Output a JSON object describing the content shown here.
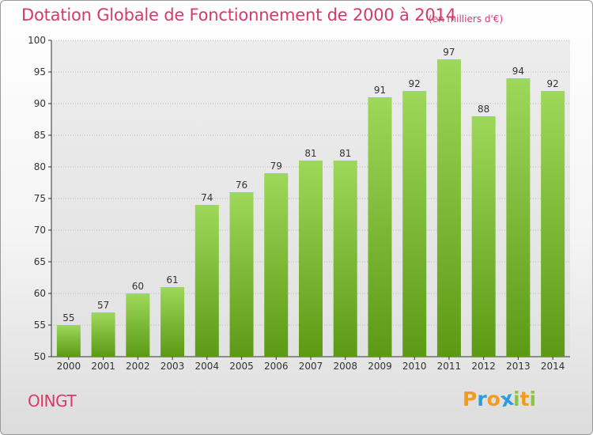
{
  "title": "Dotation Globale de Fonctionnement de 2000 à 2014",
  "subtitle": "(en milliers d'€)",
  "commune": "OINGT",
  "logo": {
    "letters": [
      "P",
      "r",
      "o",
      "x",
      "i",
      "t",
      "i"
    ]
  },
  "colors": {
    "title": "#d63a6a",
    "bar_top": "#9ed85a",
    "bar_bottom": "#5c9a15",
    "axis": "#333333",
    "grid": "#bbbbbb",
    "logo": [
      "#f39c1b",
      "#2a9de0",
      "#f39c1b",
      "#2a9de0",
      "#8cc63f",
      "#f39c1b",
      "#8cc63f"
    ]
  },
  "chart_data": {
    "type": "bar",
    "title": "Dotation Globale de Fonctionnement de 2000 à 2014",
    "xlabel": "",
    "ylabel": "",
    "categories": [
      "2000",
      "2001",
      "2002",
      "2003",
      "2004",
      "2005",
      "2006",
      "2007",
      "2008",
      "2009",
      "2010",
      "2011",
      "2012",
      "2013",
      "2014"
    ],
    "values": [
      55,
      57,
      60,
      61,
      74,
      76,
      79,
      81,
      81,
      91,
      92,
      97,
      88,
      94,
      92
    ],
    "ylim": [
      50,
      100
    ],
    "yticks": [
      50,
      55,
      60,
      65,
      70,
      75,
      80,
      85,
      90,
      95,
      100
    ],
    "grid": true
  }
}
